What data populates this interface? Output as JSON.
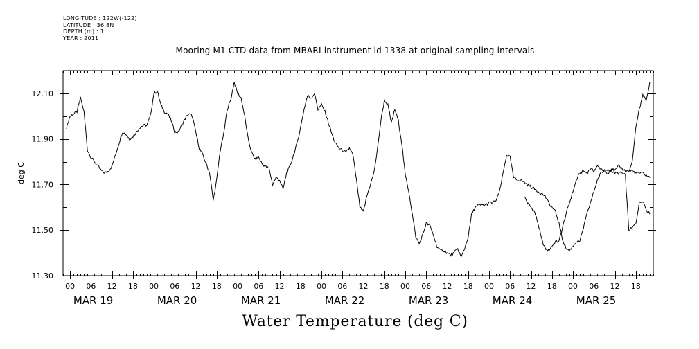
{
  "metadata": {
    "longitude": "LONGITUDE : 122W(-122)",
    "latitude": "LATITUDE : 36.8N",
    "depth": "DEPTH (m) : 1",
    "year": "YEAR : 2011"
  },
  "chart_data": {
    "type": "line",
    "title": "Mooring M1 CTD data from MBARI instrument id 1338 at original sampling intervals",
    "bottom_title": "Water Temperature (deg C)",
    "ylabel": "deg C",
    "xlabel": "",
    "ylim": [
      11.3,
      12.2
    ],
    "xlim_hours": [
      -2,
      167
    ],
    "y_ticks": [
      "11.30",
      "11.50",
      "11.70",
      "11.90",
      "12.10"
    ],
    "hour_tick_labels": [
      "00",
      "06",
      "12",
      "18"
    ],
    "day_labels": [
      "MAR 19",
      "MAR 20",
      "MAR 21",
      "MAR 22",
      "MAR 23",
      "MAR 24",
      "MAR 25"
    ],
    "grid": false,
    "series": [
      {
        "name": "",
        "x_hours": [
          -1,
          0,
          1,
          2,
          3,
          4,
          5,
          6,
          7,
          8,
          9,
          10,
          11,
          12,
          13,
          14,
          15,
          16,
          17,
          18,
          19,
          20,
          21,
          22,
          23,
          24,
          25,
          26,
          27,
          28,
          29,
          30,
          31,
          32,
          33,
          34,
          35,
          36,
          37,
          38,
          39,
          40,
          41,
          42,
          43,
          44,
          45,
          46,
          47,
          48,
          49,
          50,
          51,
          52,
          53,
          54,
          55,
          56,
          57,
          58,
          59,
          60,
          61,
          62,
          63,
          64,
          65,
          66,
          67,
          68,
          69,
          70,
          71,
          72,
          73,
          74,
          75,
          76,
          77,
          78,
          79,
          80,
          81,
          82,
          83,
          84,
          85,
          86,
          87,
          88,
          89,
          90,
          91,
          92,
          93,
          94,
          95,
          96,
          97,
          98,
          99,
          100,
          101,
          102,
          103,
          104,
          105,
          106,
          107,
          108,
          109,
          110,
          111,
          112,
          113,
          114,
          115,
          116,
          117,
          118,
          119,
          120,
          121,
          122,
          123,
          124,
          125,
          126,
          127,
          128,
          129,
          130,
          131,
          132,
          133,
          134,
          135,
          136,
          137,
          138,
          139,
          140,
          141,
          142,
          143,
          144,
          145,
          146,
          147,
          148,
          149,
          150,
          151,
          152,
          153,
          154,
          155,
          156,
          157,
          158,
          159,
          160,
          161,
          162,
          163,
          164,
          165,
          166
        ],
        "values": [
          11.95,
          12.0,
          12.01,
          12.02,
          12.08,
          12.02,
          11.85,
          11.82,
          11.8,
          11.78,
          11.76,
          11.75,
          11.76,
          11.78,
          11.83,
          11.88,
          11.93,
          11.92,
          11.9,
          11.91,
          11.93,
          11.95,
          11.96,
          11.96,
          12.0,
          12.1,
          12.11,
          12.05,
          12.02,
          12.01,
          11.98,
          11.93,
          11.93,
          11.96,
          11.99,
          12.01,
          12.0,
          11.93,
          11.86,
          11.83,
          11.79,
          11.75,
          11.63,
          11.72,
          11.85,
          11.92,
          12.03,
          12.07,
          12.15,
          12.1,
          12.08,
          12.0,
          11.9,
          11.84,
          11.81,
          11.82,
          11.79,
          11.78,
          11.77,
          11.7,
          11.73,
          11.72,
          11.68,
          11.75,
          11.78,
          11.83,
          11.88,
          11.95,
          12.03,
          12.09,
          12.08,
          12.1,
          12.03,
          12.05,
          12.02,
          11.97,
          11.92,
          11.88,
          11.86,
          11.85,
          11.84,
          11.86,
          11.83,
          11.72,
          11.6,
          11.58,
          11.65,
          11.7,
          11.75,
          11.85,
          11.98,
          12.07,
          12.05,
          11.97,
          12.03,
          11.98,
          11.88,
          11.74,
          11.67,
          11.57,
          11.47,
          11.44,
          11.48,
          11.53,
          11.52,
          11.48,
          11.43,
          11.41,
          11.41,
          11.4,
          11.39,
          11.4,
          11.42,
          11.38,
          11.42,
          11.47,
          11.57,
          11.6,
          11.61,
          11.61,
          11.61,
          11.62,
          11.62,
          11.63,
          11.67,
          11.75,
          11.83,
          11.82,
          11.73,
          11.72,
          11.72,
          11.71,
          11.7,
          11.69,
          11.68,
          11.67,
          11.66,
          11.65,
          11.62,
          11.6,
          11.58,
          11.53,
          11.46,
          11.42,
          11.41,
          11.43,
          11.45,
          11.45,
          11.51,
          11.57,
          11.62,
          11.67,
          11.72,
          11.75,
          11.76,
          11.75,
          11.77,
          11.76,
          11.78,
          11.77,
          11.76,
          11.76,
          11.76,
          11.75,
          11.75,
          11.75,
          11.74,
          11.73
        ]
      },
      {
        "name": "",
        "x_hours": [
          130,
          131,
          132,
          133,
          134,
          135,
          136,
          137,
          138,
          139,
          140,
          141,
          142,
          143,
          144,
          145,
          146,
          147,
          148,
          149,
          150,
          151,
          152,
          153,
          154,
          155,
          156,
          157,
          158,
          159,
          160,
          161,
          162,
          163,
          164,
          165,
          166
        ],
        "values": [
          11.65,
          11.62,
          11.6,
          11.58,
          11.53,
          11.46,
          11.42,
          11.41,
          11.43,
          11.45,
          11.45,
          11.51,
          11.57,
          11.62,
          11.67,
          11.72,
          11.75,
          11.76,
          11.75,
          11.77,
          11.76,
          11.78,
          11.77,
          11.76,
          11.76,
          11.76,
          11.75,
          11.75,
          11.75,
          11.74,
          11.5,
          11.51,
          11.53,
          11.62,
          11.63,
          11.59,
          11.57
        ]
      },
      {
        "name": "",
        "x_hours": [
          160,
          161,
          162,
          163,
          164,
          165,
          166
        ],
        "values": [
          11.76,
          11.8,
          11.95,
          12.03,
          12.09,
          12.07,
          12.15
        ]
      }
    ]
  }
}
